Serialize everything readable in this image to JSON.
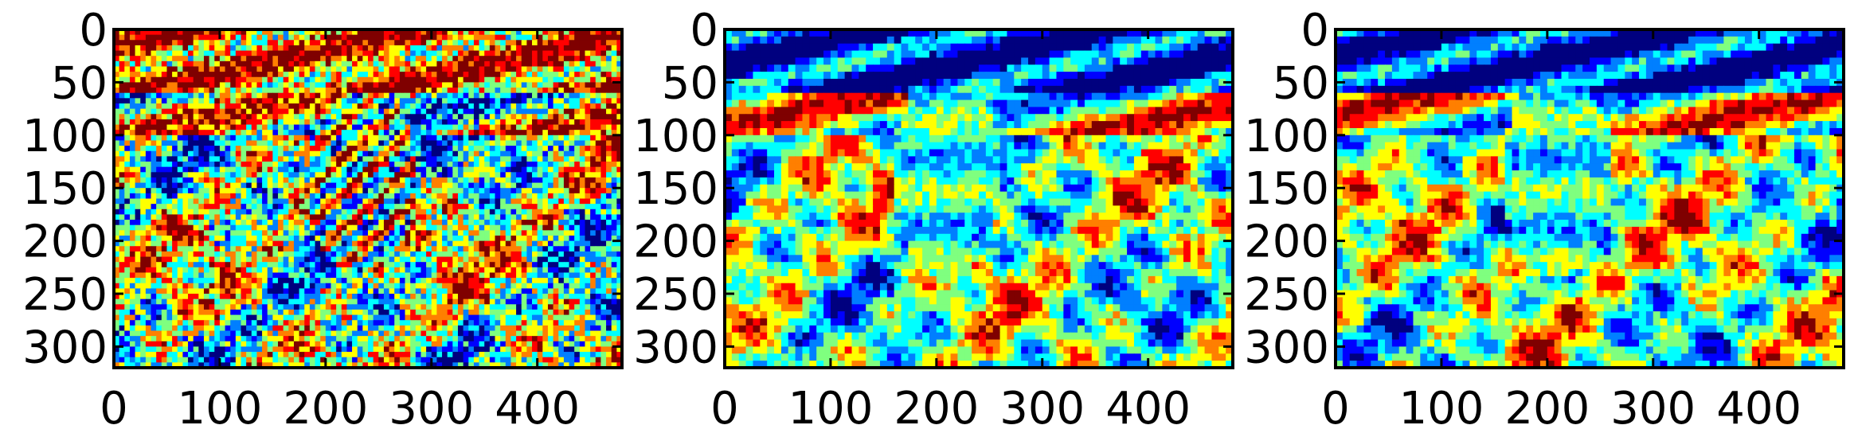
{
  "chart_data": [
    {
      "type": "heatmap",
      "title": "",
      "xlabel": "",
      "ylabel": "",
      "xlim": [
        0,
        480
      ],
      "ylim": [
        320,
        0
      ],
      "xticks": [
        0,
        100,
        200,
        300,
        400
      ],
      "yticks": [
        0,
        50,
        100,
        150,
        200,
        250,
        300
      ],
      "colormap": [
        "#00007f",
        "#0000ff",
        "#007fff",
        "#00ffff",
        "#7fff7f",
        "#ffff00",
        "#ff7f00",
        "#ff0000",
        "#7f0000"
      ],
      "texture": "dithered"
    },
    {
      "type": "heatmap",
      "title": "",
      "xlabel": "",
      "ylabel": "",
      "xlim": [
        0,
        480
      ],
      "ylim": [
        320,
        0
      ],
      "xticks": [
        0,
        100,
        200,
        300,
        400
      ],
      "yticks": [
        0,
        50,
        100,
        150,
        200,
        250,
        300
      ],
      "colormap": [
        "#00007f",
        "#0000ff",
        "#007fff",
        "#00ffff",
        "#7fff7f",
        "#ffff00",
        "#ff7f00",
        "#ff0000",
        "#7f0000"
      ],
      "texture": "segmented"
    },
    {
      "type": "heatmap",
      "title": "",
      "xlabel": "",
      "ylabel": "",
      "xlim": [
        0,
        480
      ],
      "ylim": [
        320,
        0
      ],
      "xticks": [
        0,
        100,
        200,
        300,
        400
      ],
      "yticks": [
        0,
        50,
        100,
        150,
        200,
        250,
        300
      ],
      "colormap": [
        "#00007f",
        "#0000ff",
        "#007fff",
        "#00ffff",
        "#7fff7f",
        "#ffff00",
        "#ff7f00",
        "#ff0000",
        "#7f0000"
      ],
      "texture": "segmented"
    }
  ]
}
